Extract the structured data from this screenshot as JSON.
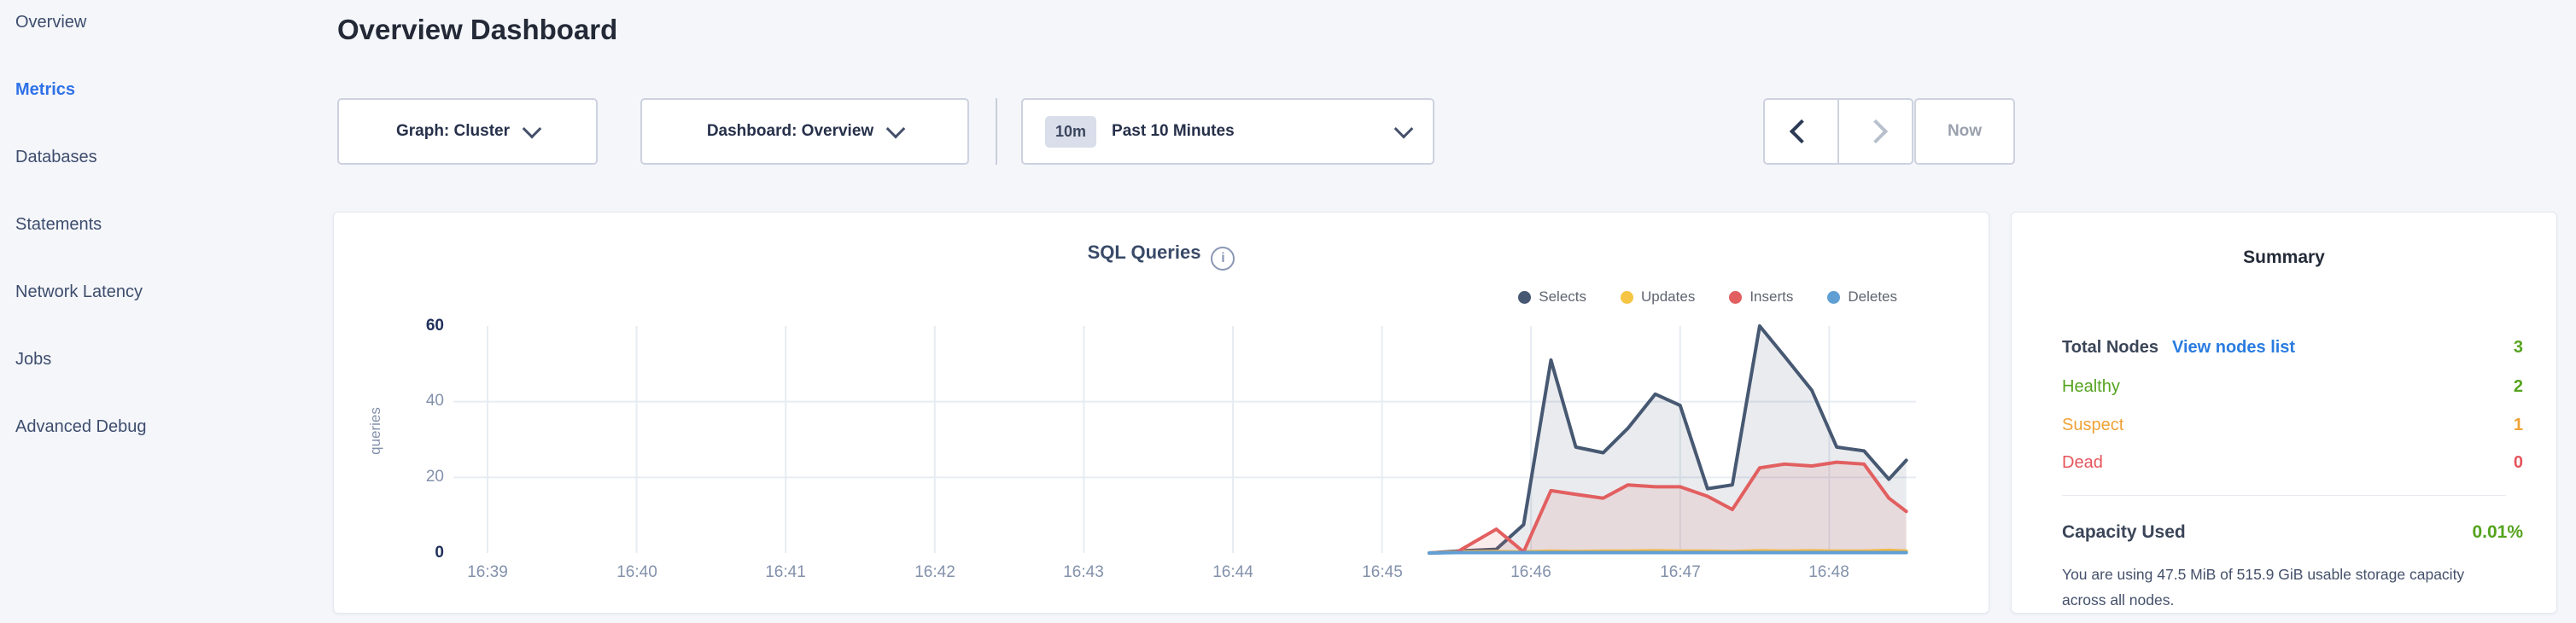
{
  "sidebar": {
    "items": [
      {
        "label": "Overview",
        "active": false
      },
      {
        "label": "Metrics",
        "active": true
      },
      {
        "label": "Databases",
        "active": false
      },
      {
        "label": "Statements",
        "active": false
      },
      {
        "label": "Network Latency",
        "active": false
      },
      {
        "label": "Jobs",
        "active": false
      },
      {
        "label": "Advanced Debug",
        "active": false
      }
    ]
  },
  "header": {
    "title": "Overview Dashboard"
  },
  "toolbar": {
    "graph_dropdown": "Graph: Cluster",
    "dashboard_dropdown": "Dashboard: Overview",
    "time_selector": {
      "badge": "10m",
      "label": "Past 10 Minutes"
    },
    "now_button": "Now"
  },
  "chart_card": {
    "title": "SQL Queries",
    "info_icon": "i"
  },
  "chart_data": {
    "type": "area",
    "title": "SQL Queries",
    "ylabel": "queries",
    "ylim": [
      0,
      60
    ],
    "y_ticks": [
      0,
      20,
      40,
      60
    ],
    "grid_y_values": [
      20,
      40
    ],
    "grid": true,
    "legend_position": "top-right",
    "x_ticks": [
      "16:39",
      "16:40",
      "16:41",
      "16:42",
      "16:43",
      "16:44",
      "16:45",
      "16:46",
      "16:47",
      "16:48"
    ],
    "x": [
      "16:45:19",
      "16:45:30",
      "16:45:46",
      "16:45:57",
      "16:46:08",
      "16:46:18",
      "16:46:29",
      "16:46:39",
      "16:46:50",
      "16:47:00",
      "16:47:11",
      "16:47:21",
      "16:47:32",
      "16:47:42",
      "16:47:53",
      "16:48:03",
      "16:48:14",
      "16:48:24",
      "16:48:31"
    ],
    "series": [
      {
        "name": "Selects",
        "color": "#475872",
        "fill_opacity": 0.12,
        "values": [
          0,
          0.5,
          1,
          7.5,
          51,
          28,
          26.5,
          33,
          42,
          39,
          17,
          18,
          60,
          52,
          43,
          28,
          27,
          19.5,
          24.5
        ]
      },
      {
        "name": "Updates",
        "color": "#f5c543",
        "fill_opacity": 0.12,
        "values": [
          0,
          0.3,
          0.4,
          0.3,
          0.5,
          0.4,
          0.5,
          0.5,
          0.6,
          0.5,
          0.5,
          0.4,
          0.6,
          0.5,
          0.6,
          0.5,
          0.5,
          0.7,
          0.5
        ]
      },
      {
        "name": "Inserts",
        "color": "#e25f60",
        "fill_opacity": 0.12,
        "values": [
          0,
          0.2,
          6.3,
          0.3,
          16.5,
          15.5,
          14.5,
          18,
          17.5,
          17.5,
          15,
          11.5,
          22.5,
          23.5,
          23,
          24,
          23.5,
          14.5,
          11
        ]
      },
      {
        "name": "Deletes",
        "color": "#5f9fd4",
        "fill_opacity": 0.12,
        "values": [
          0,
          0.1,
          0.1,
          0.1,
          0.1,
          0.1,
          0.1,
          0.1,
          0.1,
          0.1,
          0.1,
          0.1,
          0.1,
          0.1,
          0.1,
          0.1,
          0.1,
          0.1,
          0.1
        ]
      }
    ]
  },
  "summary": {
    "title": "Summary",
    "rows": [
      {
        "label": "Total Nodes",
        "link": "View nodes list",
        "value": "3",
        "label_color": "#3b4558",
        "value_color": "#55a31e"
      },
      {
        "label": "Healthy",
        "value": "2",
        "label_color": "#55a31e",
        "value_color": "#55a31e"
      },
      {
        "label": "Suspect",
        "value": "1",
        "label_color": "#eea236",
        "value_color": "#eea236"
      },
      {
        "label": "Dead",
        "value": "0",
        "label_color": "#e5555c",
        "value_color": "#e5555c"
      }
    ],
    "capacity": {
      "label": "Capacity Used",
      "value": "0.01%",
      "description": "You are using 47.5 MiB of 515.9 GiB usable storage capacity across all nodes."
    }
  }
}
